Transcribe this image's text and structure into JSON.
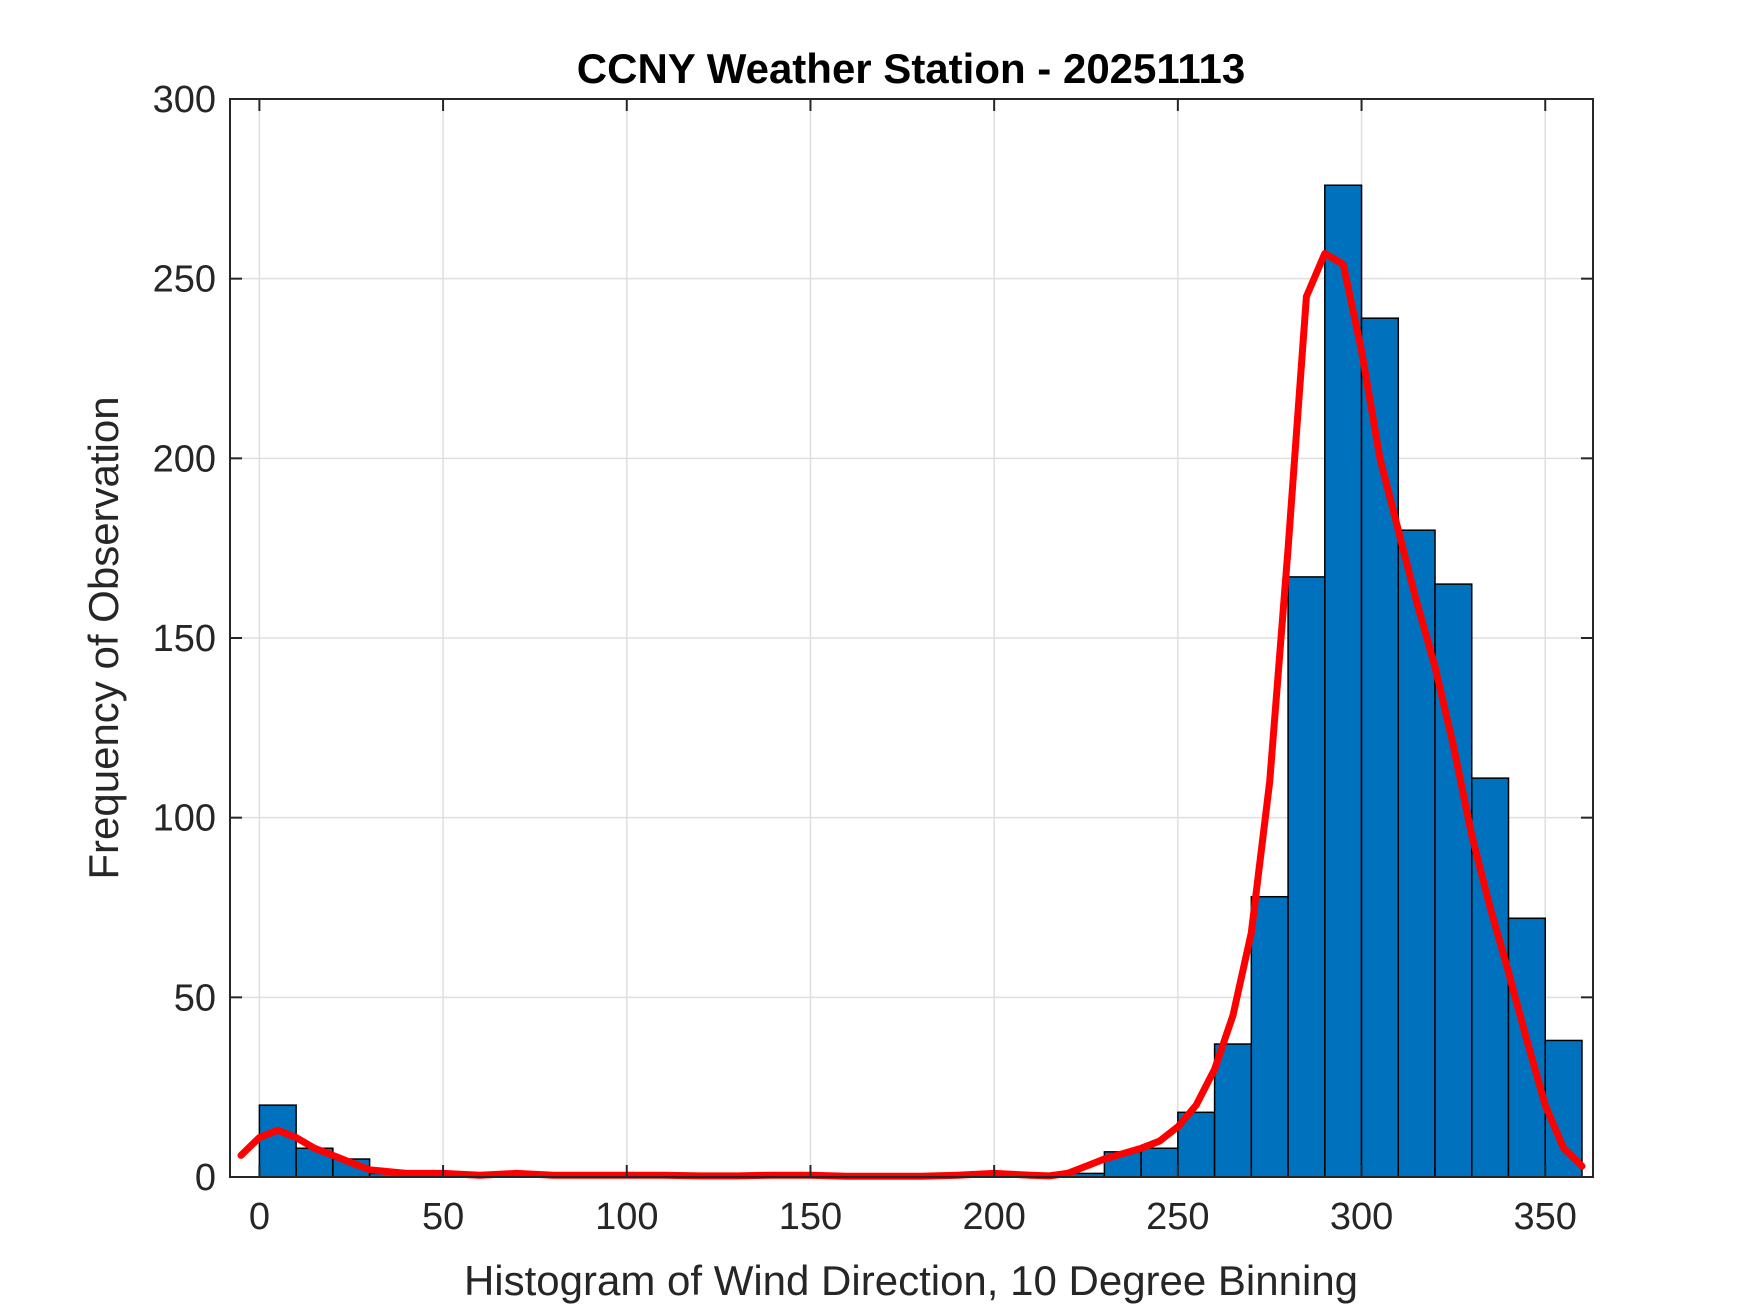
{
  "chart_data": {
    "type": "bar",
    "title": "CCNY Weather Station - 20251113",
    "xlabel": "Histogram of Wind Direction, 10 Degree Binning",
    "ylabel": "Frequency of Observation",
    "xlim": [
      -8,
      363
    ],
    "ylim": [
      0,
      300
    ],
    "xticks": [
      0,
      50,
      100,
      150,
      200,
      250,
      300,
      350
    ],
    "yticks": [
      0,
      50,
      100,
      150,
      200,
      250,
      300
    ],
    "grid": true,
    "bin_width": 10,
    "bins": [
      {
        "start": 0,
        "value": 20
      },
      {
        "start": 10,
        "value": 8
      },
      {
        "start": 20,
        "value": 5
      },
      {
        "start": 30,
        "value": 1
      },
      {
        "start": 40,
        "value": 0
      },
      {
        "start": 50,
        "value": 0
      },
      {
        "start": 60,
        "value": 0
      },
      {
        "start": 70,
        "value": 0
      },
      {
        "start": 80,
        "value": 0
      },
      {
        "start": 90,
        "value": 0
      },
      {
        "start": 100,
        "value": 0
      },
      {
        "start": 110,
        "value": 0
      },
      {
        "start": 120,
        "value": 0
      },
      {
        "start": 130,
        "value": 0
      },
      {
        "start": 140,
        "value": 0
      },
      {
        "start": 150,
        "value": 0
      },
      {
        "start": 160,
        "value": 0
      },
      {
        "start": 170,
        "value": 0
      },
      {
        "start": 180,
        "value": 0
      },
      {
        "start": 190,
        "value": 0
      },
      {
        "start": 200,
        "value": 0
      },
      {
        "start": 210,
        "value": 0
      },
      {
        "start": 220,
        "value": 1
      },
      {
        "start": 230,
        "value": 7
      },
      {
        "start": 240,
        "value": 8
      },
      {
        "start": 250,
        "value": 18
      },
      {
        "start": 260,
        "value": 37
      },
      {
        "start": 270,
        "value": 78
      },
      {
        "start": 280,
        "value": 167
      },
      {
        "start": 290,
        "value": 276
      },
      {
        "start": 300,
        "value": 239
      },
      {
        "start": 310,
        "value": 180
      },
      {
        "start": 320,
        "value": 165
      },
      {
        "start": 330,
        "value": 111
      },
      {
        "start": 340,
        "value": 72
      },
      {
        "start": 350,
        "value": 38
      }
    ],
    "bar_color": "#0072BD",
    "series": [
      {
        "type": "line",
        "color": "#FF0000",
        "x": [
          -5,
          0,
          5,
          10,
          15,
          20,
          25,
          30,
          35,
          40,
          50,
          60,
          70,
          80,
          90,
          100,
          110,
          120,
          130,
          140,
          150,
          160,
          170,
          180,
          190,
          200,
          210,
          215,
          220,
          225,
          230,
          240,
          245,
          250,
          255,
          260,
          265,
          270,
          275,
          280,
          285,
          290,
          295,
          300,
          305,
          310,
          315,
          320,
          325,
          330,
          335,
          340,
          345,
          350,
          355,
          360
        ],
        "y": [
          6,
          11,
          13,
          11,
          8,
          6,
          4,
          2,
          1.5,
          1,
          1,
          0.5,
          1,
          0.5,
          0.5,
          0.5,
          0.5,
          0.3,
          0.3,
          0.5,
          0.5,
          0.2,
          0.2,
          0.2,
          0.5,
          1,
          0.5,
          0.3,
          1,
          3,
          5,
          8,
          10,
          14,
          20,
          30,
          45,
          68,
          110,
          175,
          245,
          257,
          254,
          230,
          200,
          180,
          160,
          142,
          120,
          95,
          75,
          57,
          38,
          20,
          8,
          3
        ]
      }
    ]
  }
}
